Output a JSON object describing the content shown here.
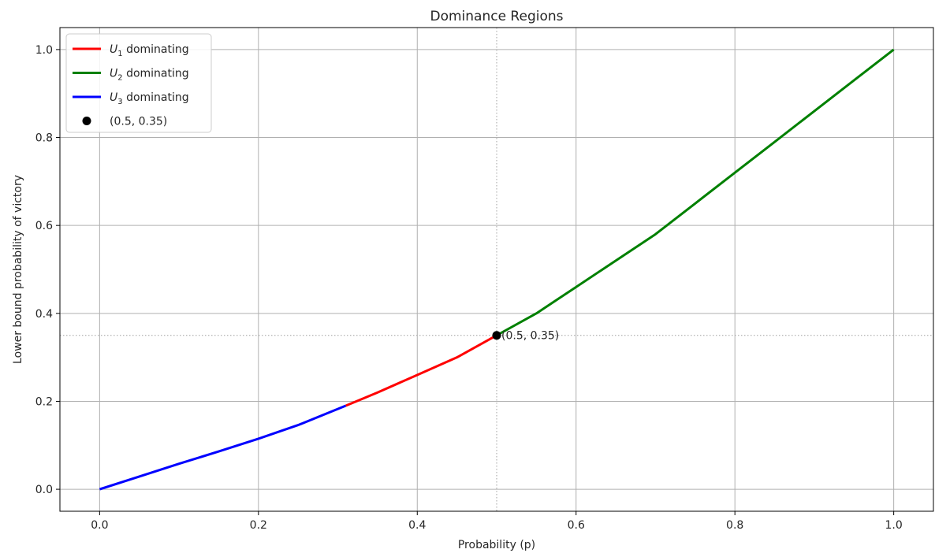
{
  "chart_data": {
    "type": "line",
    "title": "Dominance Regions",
    "xlabel": "Probability (p)",
    "ylabel": "Lower bound probability of victory",
    "xlim": [
      -0.05,
      1.05
    ],
    "ylim": [
      -0.05,
      1.05
    ],
    "x_ticks": [
      0.0,
      0.2,
      0.4,
      0.6,
      0.8,
      1.0
    ],
    "y_ticks": [
      0.0,
      0.2,
      0.4,
      0.6,
      0.8,
      1.0
    ],
    "x_tick_labels": [
      "0.0",
      "0.2",
      "0.4",
      "0.6",
      "0.8",
      "1.0"
    ],
    "y_tick_labels": [
      "0.0",
      "0.2",
      "0.4",
      "0.6",
      "0.8",
      "1.0"
    ],
    "grid": true,
    "legend_placement": "top-left",
    "series": [
      {
        "name": "U1 dominating",
        "legend_var": "U",
        "legend_sub": "1",
        "legend_suffix": " dominating",
        "color": "#ff0000",
        "x": [
          0.31,
          0.35,
          0.4,
          0.45,
          0.5
        ],
        "y": [
          0.19,
          0.22,
          0.26,
          0.3,
          0.35
        ]
      },
      {
        "name": "U2 dominating",
        "legend_var": "U",
        "legend_sub": "2",
        "legend_suffix": " dominating",
        "color": "#008000",
        "x": [
          0.5,
          0.55,
          0.6,
          0.65,
          0.7,
          0.75,
          0.8,
          0.85,
          0.9,
          0.95,
          1.0
        ],
        "y": [
          0.35,
          0.4,
          0.46,
          0.52,
          0.58,
          0.65,
          0.72,
          0.79,
          0.86,
          0.93,
          1.0
        ]
      },
      {
        "name": "U3 dominating",
        "legend_var": "U",
        "legend_sub": "3",
        "legend_suffix": " dominating",
        "color": "#0000ff",
        "x": [
          0.0,
          0.05,
          0.1,
          0.15,
          0.2,
          0.25,
          0.31
        ],
        "y": [
          0.0,
          0.029,
          0.058,
          0.086,
          0.115,
          0.146,
          0.19
        ]
      }
    ],
    "point": {
      "label": "(0.5, 0.35)",
      "x": 0.5,
      "y": 0.35,
      "color": "#000000",
      "annotation": "(0.5, 0.35)"
    },
    "reference_lines": {
      "x": 0.5,
      "y": 0.35,
      "color": "#a0a0a0"
    }
  }
}
